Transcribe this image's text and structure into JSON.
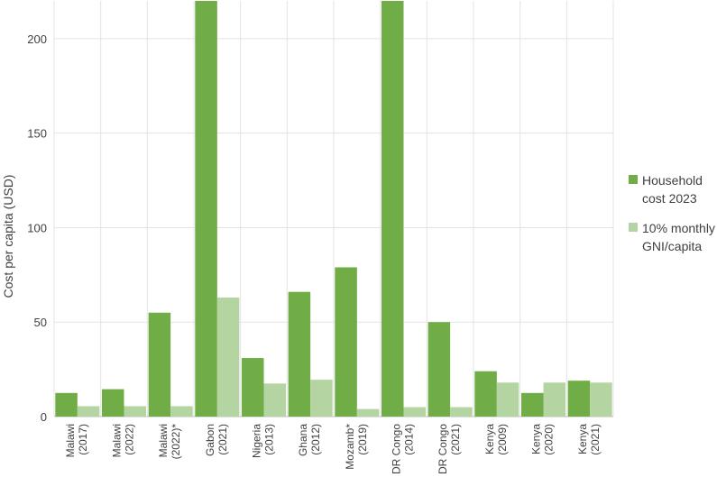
{
  "chart_data": {
    "type": "bar",
    "ylabel": "Cost per capita (USD)",
    "ylim": [
      0,
      220
    ],
    "yticks": [
      0,
      50,
      100,
      150,
      200
    ],
    "grid": true,
    "legend_position": "right",
    "categories": [
      [
        "Malawi",
        "(2017)"
      ],
      [
        "Malawi",
        "(2022)"
      ],
      [
        "Malawi",
        "(2022)*"
      ],
      [
        "Gabon",
        "(2021)"
      ],
      [
        "Nigeria",
        "(2013)"
      ],
      [
        "Ghana",
        "(2012)"
      ],
      [
        "Mozamb*",
        "(2019)"
      ],
      [
        "DR Congo",
        "(2014)"
      ],
      [
        "DR Congo",
        "(2021)"
      ],
      [
        "Kenya",
        "(2009)"
      ],
      [
        "Kenya",
        "(2020)"
      ],
      [
        "Kenya",
        "(2021)"
      ]
    ],
    "series": [
      {
        "name": [
          "Household",
          "cost 2023"
        ],
        "color": "#70ad47",
        "values": [
          12.5,
          14.5,
          55,
          220,
          31,
          66,
          79,
          220,
          50,
          24,
          12.5,
          19
        ]
      },
      {
        "name": [
          "10% monthly",
          "GNI/capita"
        ],
        "color": "#b4d4a2",
        "values": [
          5.5,
          5.5,
          5.5,
          63,
          17.5,
          19.5,
          4,
          5,
          5,
          18,
          18,
          18
        ]
      }
    ]
  }
}
